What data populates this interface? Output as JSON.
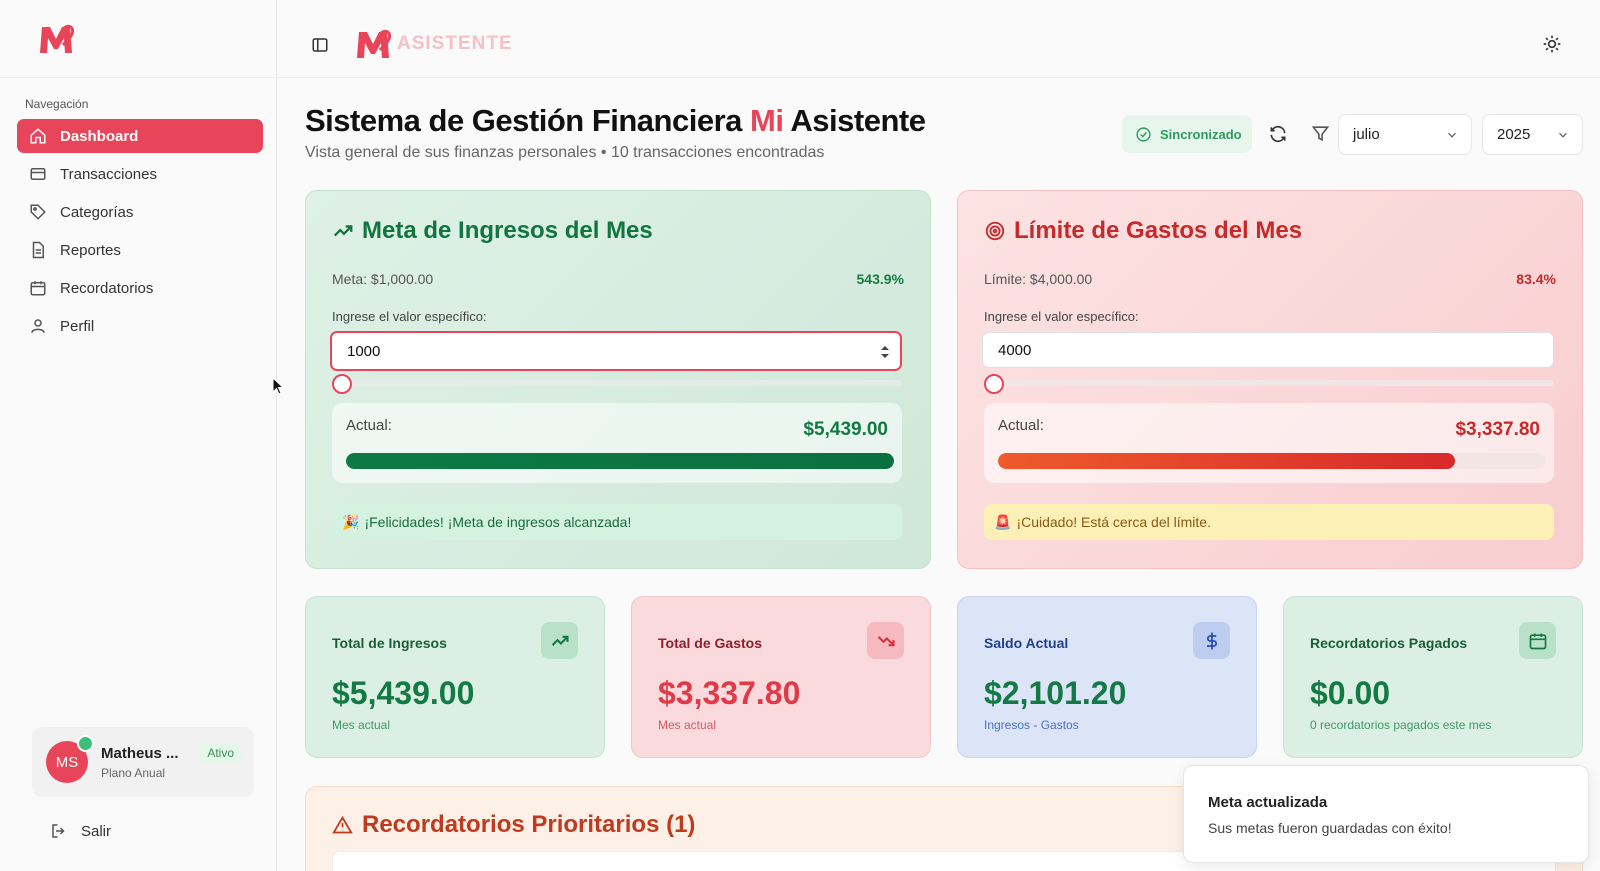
{
  "brand": {
    "logo_text": "ASISTENTE",
    "accent": "#e8445a"
  },
  "sidebar": {
    "heading": "Navegación",
    "items": [
      {
        "label": "Dashboard",
        "icon": "home-icon",
        "active": true
      },
      {
        "label": "Transacciones",
        "icon": "card-icon"
      },
      {
        "label": "Categorías",
        "icon": "tag-icon"
      },
      {
        "label": "Reportes",
        "icon": "file-icon"
      },
      {
        "label": "Recordatorios",
        "icon": "calendar-icon"
      },
      {
        "label": "Perfil",
        "icon": "user-icon"
      }
    ],
    "user": {
      "initials": "MS",
      "name": "Matheus ...",
      "plan": "Plano Anual",
      "status": "Ativo"
    },
    "logout": "Salir"
  },
  "header": {
    "title_part1": "Sistema de Gestión Financiera",
    "title_accent": "Mi",
    "title_part2": "Asistente",
    "subtitle": "Vista general de sus finanzas personales • 10 transacciones encontradas",
    "sync_label": "Sincronizado",
    "month": "julio",
    "year": "2025"
  },
  "income_goal": {
    "title": "Meta de Ingresos del Mes",
    "meta_label": "Meta: $1,000.00",
    "percent": "543.9%",
    "field_label": "Ingrese el valor específico:",
    "value": "1000",
    "actual_label": "Actual:",
    "actual_value": "$5,439.00",
    "progress": 1.0,
    "message": "¡Felicidades! ¡Meta de ingresos alcanzada!",
    "message_emoji": "🎉"
  },
  "expense_limit": {
    "title": "Límite de Gastos del Mes",
    "limit_label": "Límite: $4,000.00",
    "percent": "83.4%",
    "field_label": "Ingrese el valor específico:",
    "value": "4000",
    "actual_label": "Actual:",
    "actual_value": "$3,337.80",
    "progress": 0.834,
    "message": "¡Cuidado! Está cerca del límite.",
    "message_emoji": "🚨"
  },
  "stats": [
    {
      "label": "Total de Ingresos",
      "value": "$5,439.00",
      "note": "Mes actual",
      "icon": "trend-up-icon"
    },
    {
      "label": "Total de Gastos",
      "value": "$3,337.80",
      "note": "Mes actual",
      "icon": "trend-down-icon"
    },
    {
      "label": "Saldo Actual",
      "value": "$2,101.20",
      "note": "Ingresos - Gastos",
      "icon": "dollar-icon"
    },
    {
      "label": "Recordatorios Pagados",
      "value": "$0.00",
      "note": "0 recordatorios pagados este mes",
      "icon": "calendar-icon"
    }
  ],
  "reminders": {
    "title": "Recordatorios Prioritarios (1)"
  },
  "toast": {
    "title": "Meta actualizada",
    "description": "Sus metas fueron guardadas con éxito!"
  }
}
